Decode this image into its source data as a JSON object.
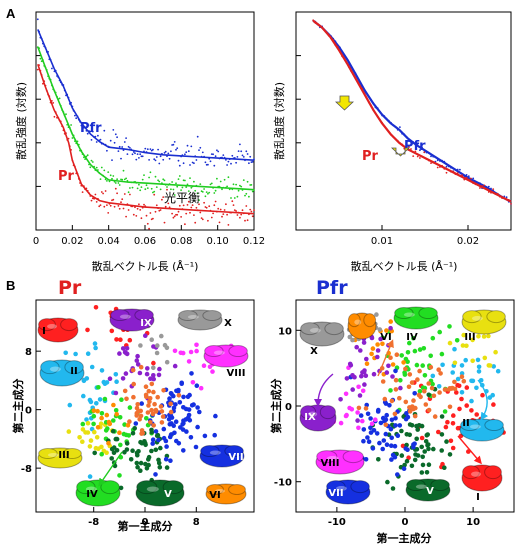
{
  "panels": {
    "a": "A",
    "b": "B"
  },
  "colors": {
    "pr": "#e02020",
    "pfr": "#1a2fd0",
    "mix": "#20cc20",
    "arrow": "#f2e600"
  },
  "chart_data": [
    {
      "type": "line",
      "xlabel": "散乱ベクトル長 (Å⁻¹)",
      "ylabel": "散乱強度 (対数)",
      "xlim": [
        0,
        0.12
      ],
      "xticks": [
        "0",
        "0.02",
        "0.04",
        "0.06",
        "0.08",
        "0.10",
        "0.12"
      ],
      "xtick_values": [
        0,
        0.02,
        0.04,
        0.06,
        0.08,
        0.1,
        0.12
      ],
      "ylim": [
        0,
        10
      ],
      "grid": false,
      "annotations": [
        "Pfr",
        "Pr",
        "光平衡"
      ],
      "series": [
        {
          "name": "Pfr",
          "x": [
            0.001,
            0.005,
            0.01,
            0.015,
            0.02,
            0.025,
            0.03,
            0.035,
            0.04,
            0.05,
            0.06,
            0.07,
            0.08,
            0.09,
            0.1,
            0.11,
            0.12
          ],
          "y": [
            9.2,
            8.4,
            7.4,
            6.6,
            5.6,
            4.9,
            4.4,
            4.05,
            3.8,
            3.7,
            3.55,
            3.45,
            3.4,
            3.35,
            3.3,
            3.25,
            3.2
          ]
        },
        {
          "name": "光平衡",
          "x": [
            0.001,
            0.005,
            0.01,
            0.015,
            0.02,
            0.025,
            0.03,
            0.035,
            0.04,
            0.05,
            0.06,
            0.07,
            0.08,
            0.09,
            0.1,
            0.11,
            0.12
          ],
          "y": [
            8.4,
            7.5,
            6.4,
            5.4,
            4.4,
            3.6,
            3.0,
            2.6,
            2.3,
            2.2,
            2.15,
            2.1,
            2.05,
            2.0,
            1.95,
            1.9,
            1.85
          ]
        },
        {
          "name": "Pr",
          "x": [
            0.001,
            0.005,
            0.01,
            0.015,
            0.018,
            0.02,
            0.025,
            0.03,
            0.035,
            0.04,
            0.05,
            0.06,
            0.07,
            0.08,
            0.09,
            0.1,
            0.11,
            0.12
          ],
          "y": [
            7.6,
            6.6,
            5.5,
            4.7,
            4.0,
            3.2,
            2.1,
            1.6,
            1.35,
            1.25,
            1.15,
            1.05,
            1.0,
            0.95,
            0.9,
            0.85,
            0.8,
            0.75
          ]
        }
      ]
    },
    {
      "type": "line",
      "xlabel": "散乱ベクトル長 (Å⁻¹)",
      "ylabel": "散乱強度 (対数)",
      "xlim": [
        0,
        0.025
      ],
      "xticks": [
        "0.01",
        "0.02"
      ],
      "xtick_values": [
        0.01,
        0.02
      ],
      "ylim": [
        0,
        10
      ],
      "grid": false,
      "annotations": [
        "Pfr",
        "Pr"
      ],
      "series": [
        {
          "name": "Pfr",
          "x": [
            0.002,
            0.003,
            0.004,
            0.005,
            0.006,
            0.007,
            0.008,
            0.009,
            0.01,
            0.011,
            0.012,
            0.013,
            0.014,
            0.016,
            0.018,
            0.02,
            0.022,
            0.024,
            0.025
          ],
          "y": [
            9.6,
            9.3,
            8.9,
            8.4,
            7.8,
            7.1,
            6.4,
            5.8,
            5.3,
            4.9,
            4.6,
            4.2,
            3.9,
            3.4,
            2.9,
            2.4,
            2.0,
            1.5,
            1.3
          ]
        },
        {
          "name": "Pr",
          "x": [
            0.002,
            0.003,
            0.004,
            0.005,
            0.006,
            0.007,
            0.008,
            0.009,
            0.01,
            0.011,
            0.012,
            0.013,
            0.014,
            0.016,
            0.018,
            0.02,
            0.022,
            0.024,
            0.025
          ],
          "y": [
            9.6,
            9.3,
            8.85,
            8.25,
            7.6,
            6.9,
            6.2,
            5.5,
            4.9,
            4.4,
            4.0,
            3.7,
            3.5,
            3.1,
            2.7,
            2.3,
            1.9,
            1.5,
            1.3
          ]
        }
      ]
    },
    {
      "type": "scatter",
      "title": "Pr",
      "xlabel": "第一主成分",
      "ylabel": "第二主成分",
      "xlim": [
        -17,
        17
      ],
      "ylim": [
        -14,
        15
      ],
      "xticks": [
        "-8",
        "0",
        "8"
      ],
      "xtick_values": [
        -8,
        0,
        8
      ],
      "yticks": [
        "8",
        "0",
        "-8"
      ],
      "ytick_values": [
        8,
        0,
        -8
      ],
      "grid": false,
      "class_labels": [
        "I",
        "II",
        "III",
        "IV",
        "V",
        "VI",
        "VII",
        "VIII",
        "IX",
        "X"
      ],
      "clusters": [
        {
          "label": "I",
          "color": "#ff2020",
          "center": [
            -3,
            10
          ],
          "spread": [
            2.5,
            2
          ],
          "n": 18
        },
        {
          "label": "II",
          "color": "#22b8ee",
          "center": [
            -8,
            3
          ],
          "spread": [
            2.5,
            3
          ],
          "n": 30
        },
        {
          "label": "III",
          "color": "#e8e010",
          "center": [
            -8,
            -4
          ],
          "spread": [
            2.2,
            2
          ],
          "n": 22
        },
        {
          "label": "IV",
          "color": "#22dd22",
          "center": [
            -4,
            -2
          ],
          "spread": [
            2.5,
            2.2
          ],
          "n": 35
        },
        {
          "label": "V",
          "color": "#0a6a2a",
          "center": [
            -1,
            -6
          ],
          "spread": [
            2.8,
            2.2
          ],
          "n": 55
        },
        {
          "label": "VI",
          "color": "#ff8c00",
          "center": [
            -6,
            -1
          ],
          "spread": [
            1.5,
            1.5
          ],
          "n": 12
        },
        {
          "label": "VII",
          "color": "#1530e0",
          "center": [
            5,
            -1
          ],
          "spread": [
            2.6,
            3
          ],
          "n": 80
        },
        {
          "label": "VIII",
          "color": "#ff30ff",
          "center": [
            8,
            7
          ],
          "spread": [
            2,
            1.8
          ],
          "n": 14
        },
        {
          "label": "IX",
          "color": "#8a20cc",
          "center": [
            -1,
            6
          ],
          "spread": [
            2.2,
            2
          ],
          "n": 30
        },
        {
          "label": "X",
          "color": "#999999",
          "center": [
            3,
            9
          ],
          "spread": [
            1.6,
            1.4
          ],
          "n": 10
        },
        {
          "label": "",
          "color": "#f07030",
          "center": [
            0,
            1
          ],
          "spread": [
            2,
            2
          ],
          "n": 45
        }
      ]
    },
    {
      "type": "scatter",
      "title": "Pfr",
      "xlabel": "第一主成分",
      "ylabel": "第二主成分",
      "xlim": [
        -16,
        16
      ],
      "ylim": [
        -14,
        14
      ],
      "xticks": [
        "-10",
        "0",
        "10"
      ],
      "xtick_values": [
        -10,
        0,
        10
      ],
      "yticks": [
        "10",
        "0",
        "-10"
      ],
      "ytick_values": [
        10,
        0,
        -10
      ],
      "grid": false,
      "class_labels": [
        "I",
        "II",
        "III",
        "IV",
        "V",
        "VI",
        "VII",
        "VIII",
        "IX",
        "X"
      ],
      "clusters": [
        {
          "label": "I",
          "color": "#ff2020",
          "center": [
            7,
            -2
          ],
          "spread": [
            3,
            3
          ],
          "n": 40
        },
        {
          "label": "II",
          "color": "#22b8ee",
          "center": [
            9,
            4
          ],
          "spread": [
            2.5,
            2
          ],
          "n": 25
        },
        {
          "label": "III",
          "color": "#e8e010",
          "center": [
            9,
            7
          ],
          "spread": [
            2,
            2
          ],
          "n": 15
        },
        {
          "label": "IV",
          "color": "#22dd22",
          "center": [
            2,
            6
          ],
          "spread": [
            2.5,
            2.5
          ],
          "n": 40
        },
        {
          "label": "V",
          "color": "#0a6a2a",
          "center": [
            2,
            -5
          ],
          "spread": [
            3,
            2.5
          ],
          "n": 60
        },
        {
          "label": "VI",
          "color": "#ff8c00",
          "center": [
            -4,
            7
          ],
          "spread": [
            1.8,
            2
          ],
          "n": 15
        },
        {
          "label": "VII",
          "color": "#1530e0",
          "center": [
            -3,
            -3
          ],
          "spread": [
            2.5,
            2.8
          ],
          "n": 60
        },
        {
          "label": "VIII",
          "color": "#ff30ff",
          "center": [
            -7,
            -1
          ],
          "spread": [
            2,
            2
          ],
          "n": 15
        },
        {
          "label": "IX",
          "color": "#8a20cc",
          "center": [
            -6,
            5
          ],
          "spread": [
            2.5,
            2.5
          ],
          "n": 35
        },
        {
          "label": "X",
          "color": "#999999",
          "center": [
            -6,
            10
          ],
          "spread": [
            1.8,
            1.2
          ],
          "n": 10
        },
        {
          "label": "",
          "color": "#f07030",
          "center": [
            2,
            2
          ],
          "spread": [
            3,
            2
          ],
          "n": 50
        }
      ]
    }
  ]
}
